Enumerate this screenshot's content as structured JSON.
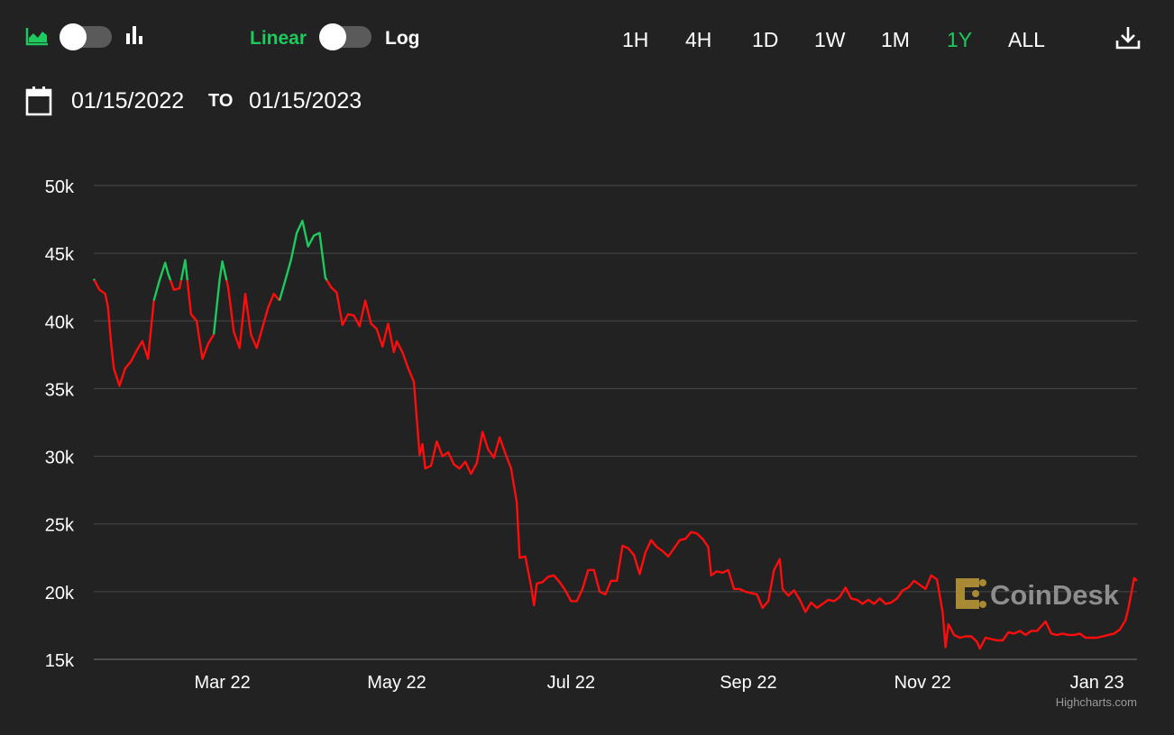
{
  "toolbar": {
    "chart_type_icons": [
      "area-chart-icon",
      "bar-chart-icon"
    ],
    "scale_options": {
      "linear": "Linear",
      "log": "Log"
    },
    "ranges": [
      "1H",
      "4H",
      "1D",
      "1W",
      "1M",
      "1Y",
      "ALL"
    ],
    "active_range": "1Y",
    "download_icon": "download-icon"
  },
  "date_range": {
    "calendar_icon": "calendar-icon",
    "from": "01/15/2022",
    "to_label": "TO",
    "to": "01/15/2023"
  },
  "watermark": "CoinDesk",
  "credits": "Highcharts.com",
  "colors": {
    "background": "#222222",
    "up": "#1ec95e",
    "down": "#ff0d0d",
    "grid": "#4a4a4a"
  },
  "chart_data": {
    "type": "line",
    "title": "",
    "xlabel": "",
    "ylabel": "",
    "threshold": 43000,
    "ylim": [
      15000,
      50000
    ],
    "yticks": [
      15000,
      20000,
      25000,
      30000,
      35000,
      40000,
      45000,
      50000
    ],
    "ytick_labels": [
      "15k",
      "20k",
      "25k",
      "30k",
      "35k",
      "40k",
      "45k",
      "50k"
    ],
    "xlim": [
      "2022-01-15",
      "2023-01-15"
    ],
    "xticks": [
      "2022-03-01",
      "2022-05-01",
      "2022-07-01",
      "2022-09-01",
      "2022-11-01",
      "2023-01-01"
    ],
    "xtick_labels": [
      "Mar 22",
      "May 22",
      "Jul 22",
      "Sep 22",
      "Nov 22",
      "Jan 23"
    ],
    "grid": true,
    "series": [
      {
        "points": [
          [
            "2022-01-15",
            43100
          ],
          [
            "2022-01-17",
            42300
          ],
          [
            "2022-01-19",
            42000
          ],
          [
            "2022-01-20",
            41000
          ],
          [
            "2022-01-21",
            38500
          ],
          [
            "2022-01-22",
            36500
          ],
          [
            "2022-01-24",
            35200
          ],
          [
            "2022-01-26",
            36500
          ],
          [
            "2022-01-28",
            37000
          ],
          [
            "2022-01-30",
            37800
          ],
          [
            "2022-02-01",
            38500
          ],
          [
            "2022-02-03",
            37200
          ],
          [
            "2022-02-05",
            41500
          ],
          [
            "2022-02-07",
            43000
          ],
          [
            "2022-02-09",
            44300
          ],
          [
            "2022-02-10",
            43500
          ],
          [
            "2022-02-12",
            42300
          ],
          [
            "2022-02-14",
            42400
          ],
          [
            "2022-02-16",
            44500
          ],
          [
            "2022-02-18",
            40500
          ],
          [
            "2022-02-20",
            40000
          ],
          [
            "2022-02-22",
            37200
          ],
          [
            "2022-02-24",
            38300
          ],
          [
            "2022-02-26",
            39000
          ],
          [
            "2022-02-28",
            43000
          ],
          [
            "2022-03-01",
            44400
          ],
          [
            "2022-03-03",
            42500
          ],
          [
            "2022-03-05",
            39200
          ],
          [
            "2022-03-07",
            38000
          ],
          [
            "2022-03-09",
            42000
          ],
          [
            "2022-03-11",
            39000
          ],
          [
            "2022-03-13",
            38000
          ],
          [
            "2022-03-15",
            39500
          ],
          [
            "2022-03-17",
            41000
          ],
          [
            "2022-03-19",
            42000
          ],
          [
            "2022-03-21",
            41500
          ],
          [
            "2022-03-23",
            43000
          ],
          [
            "2022-03-25",
            44500
          ],
          [
            "2022-03-27",
            46500
          ],
          [
            "2022-03-29",
            47400
          ],
          [
            "2022-03-31",
            45500
          ],
          [
            "2022-04-02",
            46300
          ],
          [
            "2022-04-04",
            46500
          ],
          [
            "2022-04-06",
            43200
          ],
          [
            "2022-04-08",
            42500
          ],
          [
            "2022-04-10",
            42100
          ],
          [
            "2022-04-12",
            39700
          ],
          [
            "2022-04-14",
            40500
          ],
          [
            "2022-04-16",
            40400
          ],
          [
            "2022-04-18",
            39600
          ],
          [
            "2022-04-20",
            41500
          ],
          [
            "2022-04-22",
            39800
          ],
          [
            "2022-04-24",
            39400
          ],
          [
            "2022-04-26",
            38100
          ],
          [
            "2022-04-28",
            39800
          ],
          [
            "2022-04-30",
            37700
          ],
          [
            "2022-05-01",
            38500
          ],
          [
            "2022-05-03",
            37700
          ],
          [
            "2022-05-05",
            36500
          ],
          [
            "2022-05-07",
            35500
          ],
          [
            "2022-05-09",
            30100
          ],
          [
            "2022-05-10",
            30900
          ],
          [
            "2022-05-11",
            29100
          ],
          [
            "2022-05-13",
            29300
          ],
          [
            "2022-05-15",
            31100
          ],
          [
            "2022-05-17",
            30000
          ],
          [
            "2022-05-19",
            30300
          ],
          [
            "2022-05-21",
            29400
          ],
          [
            "2022-05-23",
            29100
          ],
          [
            "2022-05-25",
            29600
          ],
          [
            "2022-05-27",
            28700
          ],
          [
            "2022-05-29",
            29500
          ],
          [
            "2022-05-31",
            31800
          ],
          [
            "2022-06-02",
            30500
          ],
          [
            "2022-06-04",
            29900
          ],
          [
            "2022-06-06",
            31400
          ],
          [
            "2022-06-08",
            30200
          ],
          [
            "2022-06-10",
            29100
          ],
          [
            "2022-06-12",
            26600
          ],
          [
            "2022-06-13",
            22500
          ],
          [
            "2022-06-15",
            22600
          ],
          [
            "2022-06-17",
            20400
          ],
          [
            "2022-06-18",
            19000
          ],
          [
            "2022-06-19",
            20600
          ],
          [
            "2022-06-21",
            20700
          ],
          [
            "2022-06-23",
            21100
          ],
          [
            "2022-06-25",
            21200
          ],
          [
            "2022-06-27",
            20700
          ],
          [
            "2022-06-29",
            20100
          ],
          [
            "2022-07-01",
            19300
          ],
          [
            "2022-07-03",
            19300
          ],
          [
            "2022-07-05",
            20200
          ],
          [
            "2022-07-07",
            21600
          ],
          [
            "2022-07-09",
            21600
          ],
          [
            "2022-07-11",
            20000
          ],
          [
            "2022-07-13",
            19800
          ],
          [
            "2022-07-15",
            20800
          ],
          [
            "2022-07-17",
            20800
          ],
          [
            "2022-07-19",
            23400
          ],
          [
            "2022-07-21",
            23200
          ],
          [
            "2022-07-23",
            22700
          ],
          [
            "2022-07-25",
            21300
          ],
          [
            "2022-07-27",
            22900
          ],
          [
            "2022-07-29",
            23800
          ],
          [
            "2022-07-31",
            23300
          ],
          [
            "2022-08-02",
            23000
          ],
          [
            "2022-08-04",
            22600
          ],
          [
            "2022-08-06",
            23200
          ],
          [
            "2022-08-08",
            23800
          ],
          [
            "2022-08-10",
            23900
          ],
          [
            "2022-08-12",
            24400
          ],
          [
            "2022-08-14",
            24300
          ],
          [
            "2022-08-16",
            23900
          ],
          [
            "2022-08-18",
            23300
          ],
          [
            "2022-08-19",
            21200
          ],
          [
            "2022-08-21",
            21500
          ],
          [
            "2022-08-23",
            21400
          ],
          [
            "2022-08-25",
            21600
          ],
          [
            "2022-08-27",
            20200
          ],
          [
            "2022-08-29",
            20200
          ],
          [
            "2022-08-31",
            20000
          ],
          [
            "2022-09-02",
            19900
          ],
          [
            "2022-09-04",
            19800
          ],
          [
            "2022-09-06",
            18800
          ],
          [
            "2022-09-08",
            19300
          ],
          [
            "2022-09-10",
            21600
          ],
          [
            "2022-09-12",
            22400
          ],
          [
            "2022-09-13",
            20200
          ],
          [
            "2022-09-15",
            19700
          ],
          [
            "2022-09-17",
            20100
          ],
          [
            "2022-09-19",
            19400
          ],
          [
            "2022-09-21",
            18500
          ],
          [
            "2022-09-23",
            19200
          ],
          [
            "2022-09-25",
            18800
          ],
          [
            "2022-09-27",
            19100
          ],
          [
            "2022-09-29",
            19400
          ],
          [
            "2022-10-01",
            19300
          ],
          [
            "2022-10-03",
            19600
          ],
          [
            "2022-10-05",
            20300
          ],
          [
            "2022-10-07",
            19500
          ],
          [
            "2022-10-09",
            19400
          ],
          [
            "2022-10-11",
            19100
          ],
          [
            "2022-10-13",
            19400
          ],
          [
            "2022-10-15",
            19100
          ],
          [
            "2022-10-17",
            19500
          ],
          [
            "2022-10-19",
            19100
          ],
          [
            "2022-10-21",
            19200
          ],
          [
            "2022-10-23",
            19500
          ],
          [
            "2022-10-25",
            20100
          ],
          [
            "2022-10-27",
            20300
          ],
          [
            "2022-10-29",
            20800
          ],
          [
            "2022-10-31",
            20500
          ],
          [
            "2022-11-02",
            20200
          ],
          [
            "2022-11-04",
            21200
          ],
          [
            "2022-11-06",
            20900
          ],
          [
            "2022-11-08",
            18500
          ],
          [
            "2022-11-09",
            15900
          ],
          [
            "2022-11-10",
            17600
          ],
          [
            "2022-11-12",
            16800
          ],
          [
            "2022-11-14",
            16600
          ],
          [
            "2022-11-16",
            16700
          ],
          [
            "2022-11-18",
            16700
          ],
          [
            "2022-11-20",
            16300
          ],
          [
            "2022-11-21",
            15800
          ],
          [
            "2022-11-23",
            16600
          ],
          [
            "2022-11-25",
            16500
          ],
          [
            "2022-11-27",
            16400
          ],
          [
            "2022-11-29",
            16400
          ],
          [
            "2022-12-01",
            17000
          ],
          [
            "2022-12-03",
            16900
          ],
          [
            "2022-12-05",
            17100
          ],
          [
            "2022-12-07",
            16800
          ],
          [
            "2022-12-09",
            17100
          ],
          [
            "2022-12-11",
            17100
          ],
          [
            "2022-12-14",
            17800
          ],
          [
            "2022-12-16",
            16900
          ],
          [
            "2022-12-18",
            16800
          ],
          [
            "2022-12-20",
            16900
          ],
          [
            "2022-12-22",
            16800
          ],
          [
            "2022-12-24",
            16800
          ],
          [
            "2022-12-26",
            16900
          ],
          [
            "2022-12-28",
            16600
          ],
          [
            "2022-12-30",
            16600
          ],
          [
            "2023-01-01",
            16600
          ],
          [
            "2023-01-03",
            16700
          ],
          [
            "2023-01-05",
            16800
          ],
          [
            "2023-01-07",
            16900
          ],
          [
            "2023-01-09",
            17200
          ],
          [
            "2023-01-11",
            17900
          ],
          [
            "2023-01-12",
            18800
          ],
          [
            "2023-01-13",
            19900
          ],
          [
            "2023-01-14",
            21000
          ],
          [
            "2023-01-15",
            20800
          ]
        ]
      }
    ]
  }
}
